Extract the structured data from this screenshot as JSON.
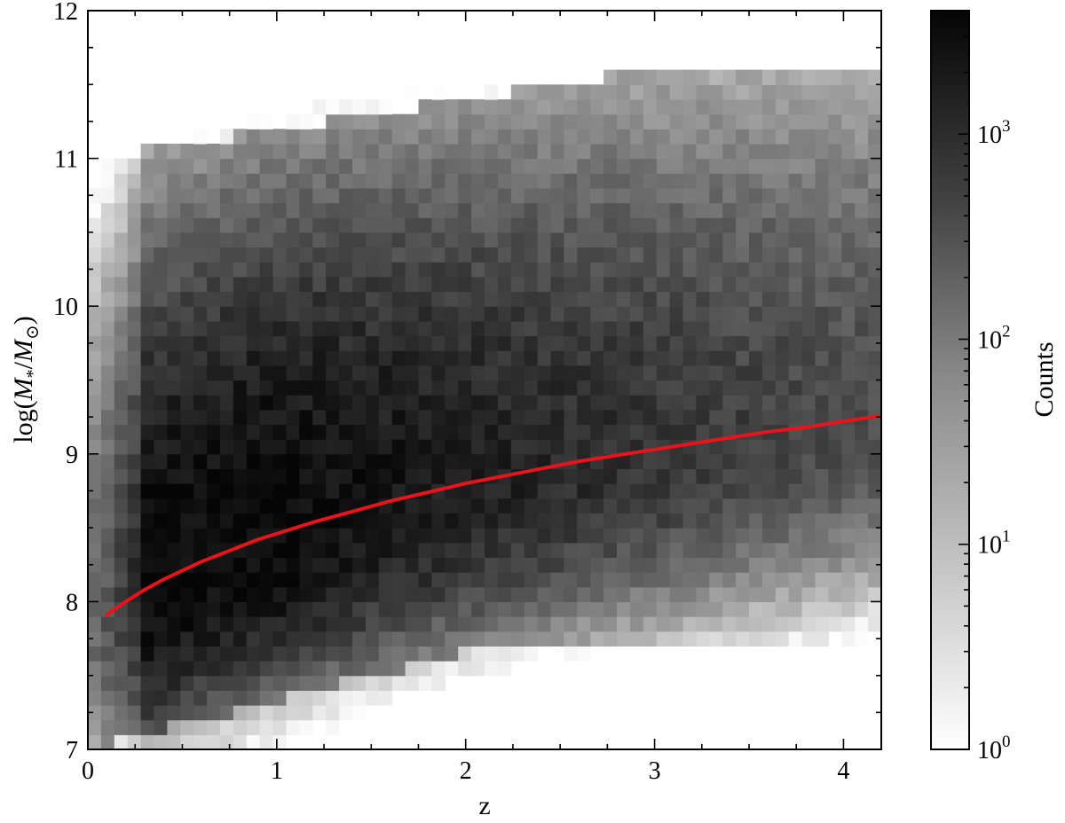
{
  "chart_data": {
    "type": "heatmap",
    "title": "",
    "xlabel": "z",
    "ylabel": "log(M_*/M_⊙)",
    "xlim": [
      0,
      4.2
    ],
    "ylim": [
      7,
      12
    ],
    "xticks": [
      0,
      1,
      2,
      3,
      4
    ],
    "xtick_labels": [
      "0",
      "1",
      "2",
      "3",
      "4"
    ],
    "yticks": [
      7,
      8,
      9,
      10,
      11,
      12
    ],
    "ytick_labels": [
      "7",
      "8",
      "9",
      "10",
      "11",
      "12"
    ],
    "bin_width_x": 0.07,
    "bin_width_y": 0.1,
    "colormap": "Greys",
    "color_scale": "log",
    "colorbar": {
      "label": "Counts",
      "ticks": [
        1,
        10,
        100,
        1000
      ],
      "tick_labels": [
        {
          "base": "10",
          "exp": "0"
        },
        {
          "base": "10",
          "exp": "1"
        },
        {
          "base": "10",
          "exp": "2"
        },
        {
          "base": "10",
          "exp": "3"
        }
      ],
      "max_count": 4000
    },
    "overlay_line": {
      "color": "#e8141c",
      "x": [
        0.1,
        0.2,
        0.3,
        0.4,
        0.5,
        0.6,
        0.7,
        0.8,
        0.9,
        1.0,
        1.2,
        1.4,
        1.6,
        1.8,
        2.0,
        2.2,
        2.4,
        2.6,
        2.8,
        3.0,
        3.2,
        3.4,
        3.6,
        3.8,
        4.0,
        4.2
      ],
      "y": [
        7.91,
        8.0,
        8.08,
        8.15,
        8.21,
        8.27,
        8.32,
        8.37,
        8.42,
        8.46,
        8.54,
        8.61,
        8.68,
        8.74,
        8.8,
        8.85,
        8.9,
        8.95,
        8.99,
        9.03,
        9.07,
        9.11,
        9.15,
        9.18,
        9.22,
        9.26
      ]
    }
  }
}
